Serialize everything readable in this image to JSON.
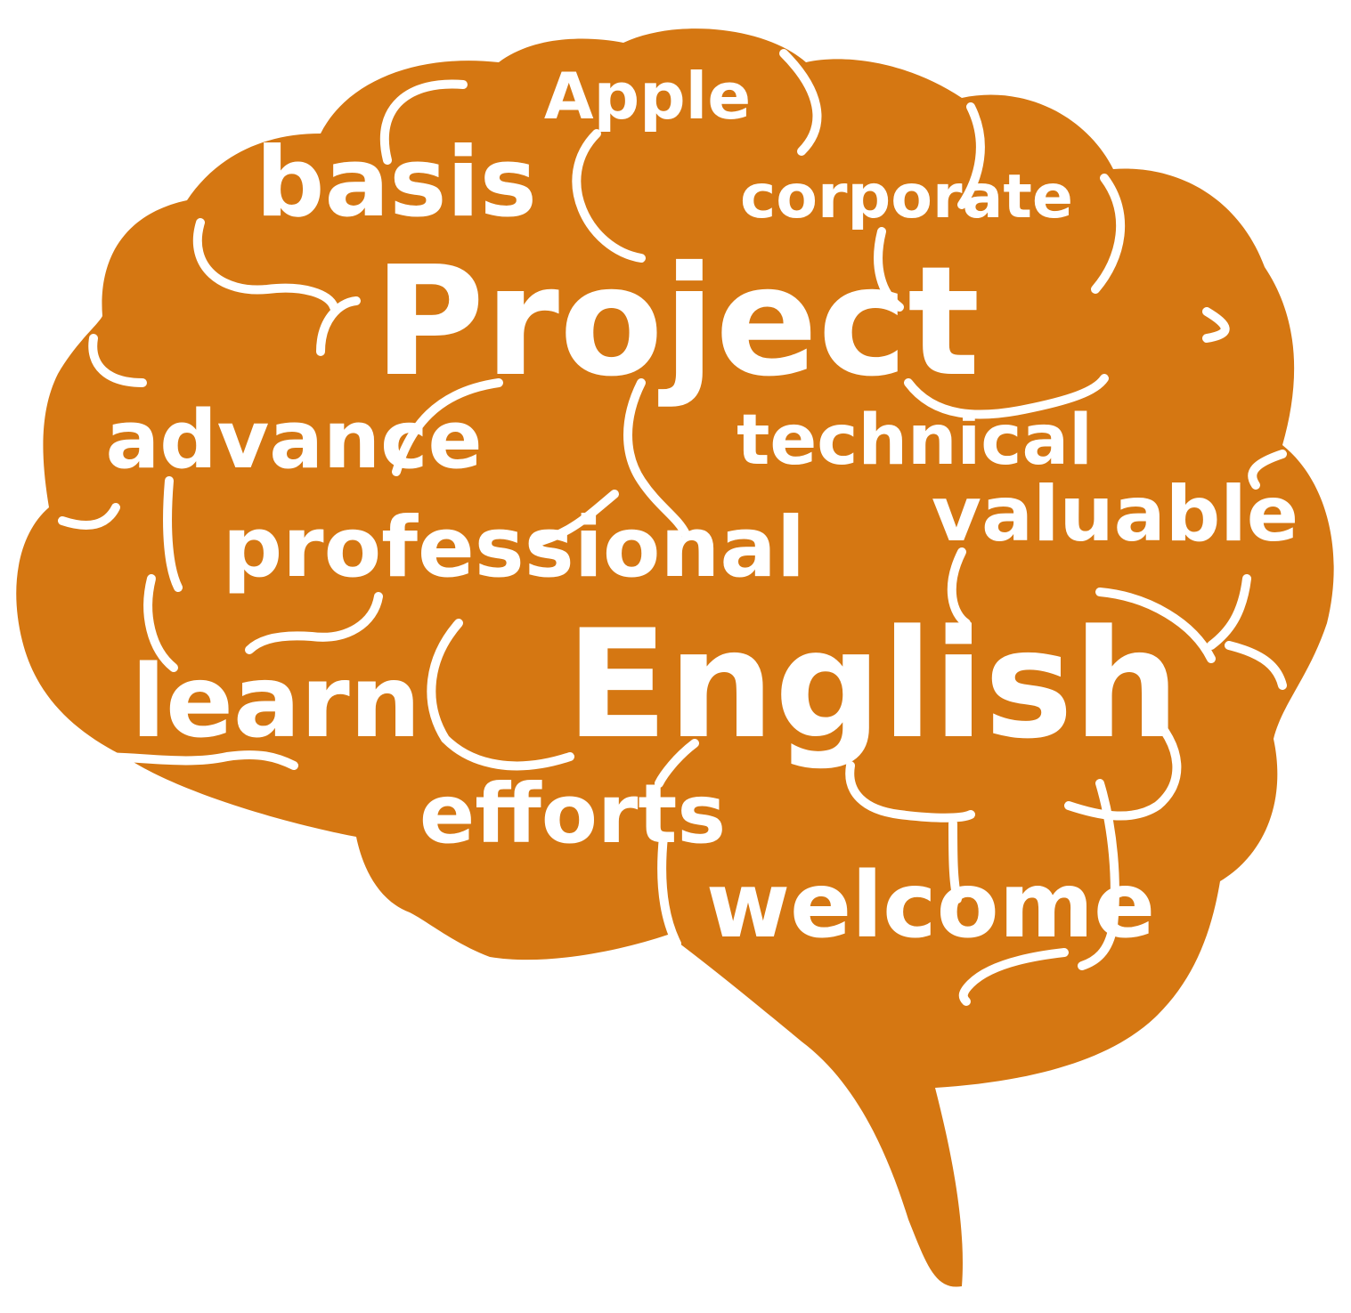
{
  "colors": {
    "brain": "#d57712",
    "text": "#ffffff",
    "background": "#ffffff"
  },
  "words": {
    "apple": "Apple",
    "basis": "basis",
    "corporate": "corporate",
    "project": "Project",
    "advance": "advance",
    "technical": "technical",
    "valuable": "valuable",
    "professional": "professional",
    "learn": "learn",
    "english": "English",
    "efforts": "efforts",
    "welcome": "welcome"
  }
}
